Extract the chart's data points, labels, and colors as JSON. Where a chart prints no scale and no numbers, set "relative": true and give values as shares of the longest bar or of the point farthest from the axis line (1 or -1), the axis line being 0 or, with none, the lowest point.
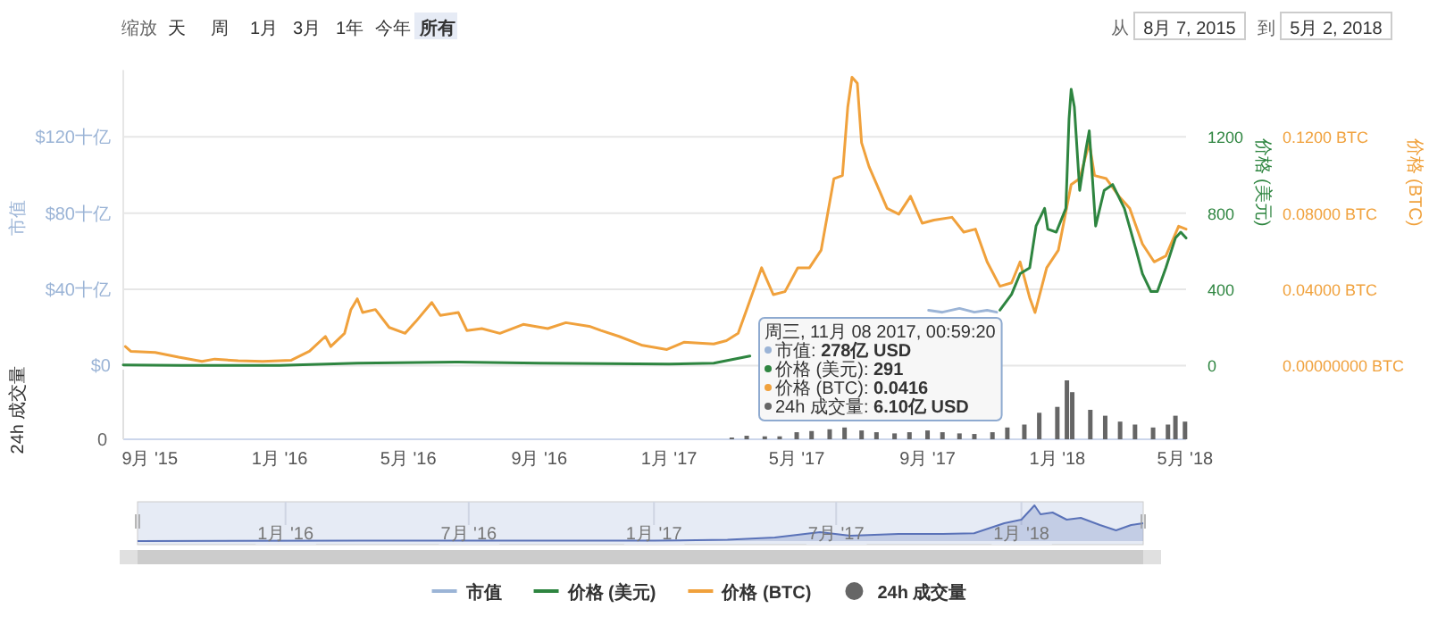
{
  "chart_data": [
    {
      "type": "line",
      "xlim": [
        "2015-08-07",
        "2018-05-02"
      ],
      "tick_labels": "y",
      "grid": "y",
      "legend": "bottom",
      "ylabel": "市值",
      "y2label": "价格 (美元)",
      "y3label": "价格 (BTC)",
      "ylim": [
        0,
        155
      ],
      "yticks": [
        {
          "value": 0,
          "label": "$0"
        },
        {
          "value": 40,
          "label": "$40十亿"
        },
        {
          "value": 80,
          "label": "$80十亿"
        },
        {
          "value": 120,
          "label": "$120十亿"
        }
      ],
      "y2lim": [
        0,
        1550
      ],
      "y2ticks": [
        0,
        400,
        800,
        1200
      ],
      "y3lim": [
        0,
        0.155
      ],
      "y3ticks": [
        {
          "value": 0,
          "label": "0.00000000 BTC"
        },
        {
          "value": 0.04,
          "label": "0.04000 BTC"
        },
        {
          "value": 0.08,
          "label": "0.08000 BTC"
        },
        {
          "value": 0.12,
          "label": "0.1200 BTC"
        }
      ],
      "series": [
        {
          "name": "市值",
          "color": "#9bb4d6",
          "axis": "y",
          "x": [
            "2017-09-02",
            "2017-09-15",
            "2017-10-01",
            "2017-10-15",
            "2017-10-27",
            "2017-11-05"
          ],
          "values": [
            29,
            28,
            30,
            28,
            29,
            28
          ]
        },
        {
          "name": "价格 (美元)",
          "color": "#2e8540",
          "axis": "y2",
          "x": [
            "2015-08-07",
            "2015-10-01",
            "2016-01-01",
            "2016-03-14",
            "2016-06-17",
            "2016-09-01",
            "2017-01-01",
            "2017-02-12",
            "2017-03-18",
            "2017-04-25",
            "2017-11-08",
            "2017-11-19",
            "2017-11-27",
            "2017-12-06",
            "2017-12-12",
            "2017-12-20",
            "2017-12-23",
            "2017-12-31",
            "2018-01-09",
            "2018-01-12",
            "2018-01-14",
            "2018-01-17",
            "2018-01-22",
            "2018-01-28",
            "2018-01-31",
            "2018-02-06",
            "2018-02-14",
            "2018-02-22",
            "2018-03-05",
            "2018-03-16",
            "2018-03-22",
            "2018-03-30",
            "2018-04-05",
            "2018-04-13",
            "2018-04-22",
            "2018-04-27",
            "2018-05-02"
          ],
          "values": [
            3,
            1,
            1,
            12,
            18,
            12,
            8,
            12,
            50,
            null,
            291,
            374,
            482,
            513,
            732,
            825,
            716,
            700,
            825,
            1294,
            1450,
            1357,
            919,
            1138,
            1232,
            732,
            919,
            950,
            825,
            607,
            482,
            388,
            388,
            513,
            669,
            700,
            669
          ]
        },
        {
          "name": "价格 (BTC)",
          "color": "#f0a13c",
          "axis": "y3",
          "x": [
            "2015-08-09",
            "2015-08-14",
            "2015-09-06",
            "2015-09-28",
            "2015-10-20",
            "2015-11-01",
            "2015-11-23",
            "2015-12-16",
            "2016-01-12",
            "2016-01-29",
            "2016-02-13",
            "2016-02-18",
            "2016-03-02",
            "2016-03-08",
            "2016-03-14",
            "2016-03-19",
            "2016-03-31",
            "2016-04-13",
            "2016-04-28",
            "2016-05-08",
            "2016-05-23",
            "2016-05-31",
            "2016-06-17",
            "2016-06-25",
            "2016-07-09",
            "2016-07-26",
            "2016-08-17",
            "2016-09-09",
            "2016-09-26",
            "2016-10-18",
            "2016-10-29",
            "2016-11-15",
            "2016-12-07",
            "2016-12-30",
            "2017-01-15",
            "2017-02-12",
            "2017-02-24",
            "2017-03-07",
            "2017-03-15",
            "2017-03-29",
            "2017-04-09",
            "2017-04-20",
            "2017-05-02",
            "2017-05-13",
            "2017-05-24",
            "2017-06-05",
            "2017-06-13",
            "2017-06-18",
            "2017-06-22",
            "2017-06-27",
            "2017-07-01",
            "2017-07-08",
            "2017-07-25",
            "2017-08-05",
            "2017-08-16",
            "2017-08-27",
            "2017-09-07",
            "2017-09-24",
            "2017-10-05",
            "2017-10-16",
            "2017-10-27",
            "2017-11-08",
            "2017-11-19",
            "2017-11-27",
            "2017-12-06",
            "2017-12-11",
            "2017-12-22",
            "2018-01-02",
            "2018-01-14",
            "2018-01-22",
            "2018-01-31",
            "2018-02-05",
            "2018-02-16",
            "2018-02-28",
            "2018-03-10",
            "2018-03-22",
            "2018-04-02",
            "2018-04-13",
            "2018-04-25",
            "2018-05-02"
          ],
          "values": [
            0.01,
            0.0075,
            0.0069,
            0.0044,
            0.0022,
            0.0034,
            0.0025,
            0.0022,
            0.0028,
            0.0075,
            0.0153,
            0.01,
            0.0169,
            0.0294,
            0.035,
            0.0278,
            0.0294,
            0.02,
            0.0169,
            0.0231,
            0.0331,
            0.0263,
            0.0278,
            0.0184,
            0.0194,
            0.0169,
            0.0216,
            0.0194,
            0.0225,
            0.0206,
            0.0184,
            0.0153,
            0.0106,
            0.0084,
            0.0122,
            0.0113,
            0.0131,
            0.0169,
            0.0294,
            0.0513,
            0.0372,
            0.0388,
            0.0513,
            0.0513,
            0.0606,
            0.0981,
            0.0997,
            0.1356,
            0.1513,
            0.1481,
            0.1169,
            0.1044,
            0.0825,
            0.0794,
            0.0888,
            0.0747,
            0.0763,
            0.0778,
            0.07,
            0.0716,
            0.0544,
            0.0416,
            0.0434,
            0.0544,
            0.0356,
            0.0278,
            0.0513,
            0.0606,
            0.095,
            0.0981,
            0.1169,
            0.0997,
            0.0981,
            0.0888,
            0.0825,
            0.0638,
            0.0544,
            0.0575,
            0.0731,
            0.0716
          ]
        }
      ],
      "annotations": [
        "缩放",
        "天",
        "周",
        "1月",
        "3月",
        "1年",
        "今年",
        "所有",
        "从",
        "8月 7, 2015",
        "到",
        "5月 2, 2018",
        "周三, 11月 08 2017, 00:59:20",
        "市值: **278亿 USD**",
        "价格 (美元): **291**",
        "价格 (BTC): **0.0416**",
        "24h 成交量: **6.10亿 USD**"
      ]
    },
    {
      "type": "bar",
      "relative": true,
      "xlim": [
        "2015-08-07",
        "2018-05-02"
      ],
      "tick_labels": "x",
      "legend": "bottom",
      "ylabel": "24h 成交量",
      "xticks": [
        {
          "value": "2015-09-01",
          "label": "9月 '15"
        },
        {
          "value": "2016-01-01",
          "label": "1月 '16"
        },
        {
          "value": "2016-05-01",
          "label": "5月 '16"
        },
        {
          "value": "2016-09-01",
          "label": "9月 '16"
        },
        {
          "value": "2017-01-01",
          "label": "1月 '17"
        },
        {
          "value": "2017-05-01",
          "label": "5月 '17"
        },
        {
          "value": "2017-09-01",
          "label": "9月 '17"
        },
        {
          "value": "2018-01-01",
          "label": "1月 '18"
        },
        {
          "value": "2018-05-01",
          "label": "5月 '18"
        }
      ],
      "series": [
        {
          "name": "24h 成交量",
          "color": "#666666",
          "x": [
            "2017-03-01",
            "2017-03-15",
            "2017-04-01",
            "2017-04-15",
            "2017-05-01",
            "2017-05-15",
            "2017-06-01",
            "2017-06-15",
            "2017-07-01",
            "2017-07-15",
            "2017-08-01",
            "2017-08-15",
            "2017-09-01",
            "2017-09-15",
            "2017-10-01",
            "2017-10-15",
            "2017-11-01",
            "2017-11-15",
            "2017-12-01",
            "2017-12-15",
            "2018-01-01",
            "2018-01-10",
            "2018-01-15",
            "2018-02-01",
            "2018-02-15",
            "2018-03-01",
            "2018-03-15",
            "2018-04-01",
            "2018-04-15",
            "2018-04-22",
            "2018-05-01"
          ],
          "values": [
            0.03,
            0.06,
            0.05,
            0.05,
            0.12,
            0.14,
            0.17,
            0.2,
            0.15,
            0.12,
            0.1,
            0.12,
            0.15,
            0.12,
            0.1,
            0.09,
            0.12,
            0.2,
            0.25,
            0.45,
            0.55,
            1.0,
            0.8,
            0.5,
            0.4,
            0.3,
            0.25,
            0.2,
            0.25,
            0.4,
            0.3
          ]
        }
      ],
      "annotations": [
        "0"
      ]
    },
    {
      "type": "area",
      "relative": true,
      "xlim": [
        "2015-08-07",
        "2018-05-02"
      ],
      "tick_labels": "x",
      "grid": "x",
      "color": "#5a72b8",
      "xticks": [
        {
          "value": "2016-01-01",
          "label": "1月 '16"
        },
        {
          "value": "2016-07-01",
          "label": "7月 '16"
        },
        {
          "value": "2017-01-01",
          "label": "1月 '17"
        },
        {
          "value": "2017-07-01",
          "label": "7月 '17"
        },
        {
          "value": "2018-01-01",
          "label": "1月 '18"
        }
      ],
      "x": [
        "2015-08-07",
        "2016-03-14",
        "2016-06-17",
        "2017-01-01",
        "2017-03-15",
        "2017-05-01",
        "2017-06-15",
        "2017-07-15",
        "2017-09-01",
        "2017-10-15",
        "2017-11-15",
        "2017-12-15",
        "2018-01-01",
        "2018-01-14",
        "2018-01-20",
        "2018-02-01",
        "2018-02-15",
        "2018-03-01",
        "2018-03-20",
        "2018-04-05",
        "2018-04-20",
        "2018-05-02"
      ],
      "values": [
        0.0,
        0.01,
        0.01,
        0.01,
        0.04,
        0.1,
        0.25,
        0.15,
        0.2,
        0.2,
        0.22,
        0.5,
        0.6,
        1.0,
        0.75,
        0.8,
        0.6,
        0.65,
        0.45,
        0.3,
        0.45,
        0.5
      ]
    }
  ]
}
